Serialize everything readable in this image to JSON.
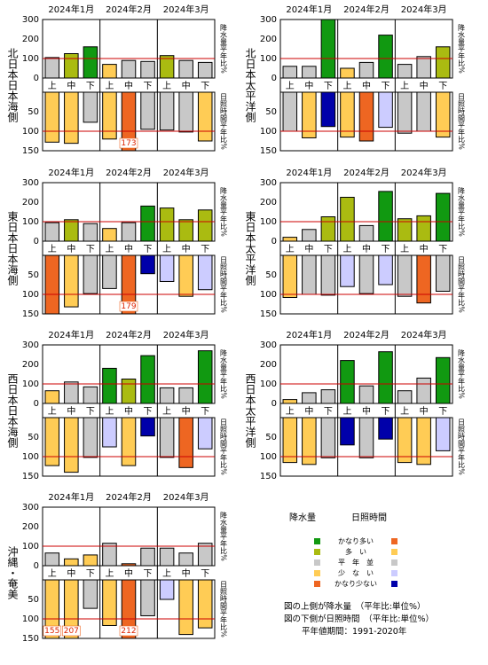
{
  "months": [
    "2024年1月",
    "2024年2月",
    "2024年3月"
  ],
  "periods": [
    "上",
    "中",
    "下",
    "上",
    "中",
    "下",
    "上",
    "中",
    "下"
  ],
  "top_axis": {
    "ticks": [
      0,
      100,
      200,
      300
    ]
  },
  "bottom_axis": {
    "ticks": [
      50,
      100,
      150
    ]
  },
  "right_label_top": "降水量平年比%",
  "right_label_bottom": "日照時間平年比%",
  "colors": {
    "precip": {
      "very_high": "#119911",
      "high": "#aabb11",
      "normal": "#c8c8c8",
      "low": "#ffcc55",
      "very_low": "#ee6622"
    },
    "sun": {
      "very_high": "#ee6622",
      "high": "#ffcc55",
      "normal": "#c8c8c8",
      "low": "#ccccff",
      "very_low": "#0000aa"
    },
    "reference_line": "#cc0000"
  },
  "legend": {
    "precip_header": "降水量",
    "sun_header": "日照時間",
    "categories": [
      "かなり多い",
      "多　い",
      "平　年　並",
      "少　な　い",
      "かなり少ない"
    ],
    "notes": [
      "図の上側が降水量　（平年比:単位%）",
      "図の下側が日照時間　（平年比:単位%）",
      "平年値期間：1991-2020年"
    ]
  },
  "chart_data": [
    {
      "type": "bar",
      "region": "北日本日本海側",
      "categories": [
        "上",
        "中",
        "下",
        "上",
        "中",
        "下",
        "上",
        "中",
        "下"
      ],
      "precip": {
        "values": [
          105,
          125,
          160,
          70,
          90,
          85,
          115,
          90,
          80
        ],
        "classes": [
          "normal",
          "high",
          "very_high",
          "low",
          "normal",
          "normal",
          "high",
          "normal",
          "normal"
        ]
      },
      "sun": {
        "values": [
          128,
          131,
          77,
          120,
          173,
          95,
          97,
          102,
          125
        ],
        "classes": [
          "high",
          "high",
          "normal",
          "high",
          "very_high",
          "normal",
          "normal",
          "normal",
          "high"
        ]
      },
      "sun_labels": [
        "",
        "",
        "",
        "",
        "173",
        "",
        "",
        "",
        ""
      ],
      "ylim_top": [
        0,
        300
      ],
      "ylim_bottom": [
        0,
        150
      ]
    },
    {
      "type": "bar",
      "region": "北日本太平洋側",
      "categories": [
        "上",
        "中",
        "下",
        "上",
        "中",
        "下",
        "上",
        "中",
        "下"
      ],
      "precip": {
        "values": [
          60,
          60,
          300,
          50,
          80,
          220,
          70,
          110,
          160
        ],
        "classes": [
          "normal",
          "normal",
          "very_high",
          "low",
          "normal",
          "very_high",
          "normal",
          "normal",
          "high"
        ]
      },
      "sun": {
        "values": [
          100,
          117,
          88,
          115,
          125,
          90,
          105,
          100,
          115
        ],
        "classes": [
          "normal",
          "high",
          "very_low",
          "high",
          "very_high",
          "low",
          "normal",
          "normal",
          "high"
        ]
      },
      "sun_labels": [
        "",
        "",
        "",
        "",
        "",
        "",
        "",
        "",
        ""
      ],
      "ylim_top": [
        0,
        300
      ],
      "ylim_bottom": [
        0,
        150
      ]
    },
    {
      "type": "bar",
      "region": "東日本日本海側",
      "categories": [
        "上",
        "中",
        "下",
        "上",
        "中",
        "下",
        "上",
        "中",
        "下"
      ],
      "precip": {
        "values": [
          95,
          110,
          90,
          65,
          95,
          180,
          170,
          110,
          160
        ],
        "classes": [
          "normal",
          "high",
          "normal",
          "low",
          "normal",
          "very_high",
          "high",
          "high",
          "high"
        ]
      },
      "sun": {
        "values": [
          150,
          132,
          98,
          85,
          179,
          47,
          67,
          105,
          88
        ],
        "classes": [
          "very_high",
          "high",
          "normal",
          "normal",
          "very_high",
          "very_low",
          "low",
          "high",
          "low"
        ]
      },
      "sun_labels": [
        "",
        "",
        "",
        "",
        "179",
        "",
        "",
        "",
        ""
      ],
      "ylim_top": [
        0,
        300
      ],
      "ylim_bottom": [
        0,
        150
      ]
    },
    {
      "type": "bar",
      "region": "東日本太平洋側",
      "categories": [
        "上",
        "中",
        "下",
        "上",
        "中",
        "下",
        "上",
        "中",
        "下"
      ],
      "precip": {
        "values": [
          20,
          60,
          125,
          225,
          80,
          255,
          115,
          130,
          245
        ],
        "classes": [
          "low",
          "normal",
          "high",
          "high",
          "normal",
          "very_high",
          "high",
          "high",
          "very_high"
        ]
      },
      "sun": {
        "values": [
          108,
          100,
          102,
          80,
          98,
          75,
          105,
          122,
          92
        ],
        "classes": [
          "high",
          "normal",
          "normal",
          "low",
          "normal",
          "low",
          "normal",
          "very_high",
          "normal"
        ]
      },
      "sun_labels": [
        "",
        "",
        "",
        "",
        "",
        "",
        "",
        "",
        ""
      ],
      "ylim_top": [
        0,
        300
      ],
      "ylim_bottom": [
        0,
        150
      ]
    },
    {
      "type": "bar",
      "region": "西日本日本海側",
      "categories": [
        "上",
        "中",
        "下",
        "上",
        "中",
        "下",
        "上",
        "中",
        "下"
      ],
      "precip": {
        "values": [
          65,
          110,
          85,
          180,
          125,
          245,
          80,
          80,
          270
        ],
        "classes": [
          "low",
          "normal",
          "normal",
          "very_high",
          "high",
          "very_high",
          "normal",
          "normal",
          "very_high"
        ]
      },
      "sun": {
        "values": [
          123,
          140,
          102,
          75,
          123,
          47,
          102,
          128,
          80
        ],
        "classes": [
          "high",
          "high",
          "normal",
          "low",
          "high",
          "very_low",
          "normal",
          "very_high",
          "low"
        ]
      },
      "sun_labels": [
        "",
        "",
        "",
        "",
        "",
        "",
        "",
        "",
        ""
      ],
      "ylim_top": [
        0,
        300
      ],
      "ylim_bottom": [
        0,
        150
      ]
    },
    {
      "type": "bar",
      "region": "西日本太平洋側",
      "categories": [
        "上",
        "中",
        "下",
        "上",
        "中",
        "下",
        "上",
        "中",
        "下"
      ],
      "precip": {
        "values": [
          20,
          55,
          70,
          220,
          90,
          265,
          65,
          130,
          235
        ],
        "classes": [
          "low",
          "normal",
          "normal",
          "very_high",
          "normal",
          "very_high",
          "normal",
          "normal",
          "very_high"
        ]
      },
      "sun": {
        "values": [
          115,
          120,
          103,
          70,
          103,
          55,
          115,
          120,
          85
        ],
        "classes": [
          "high",
          "high",
          "normal",
          "very_low",
          "normal",
          "very_low",
          "high",
          "high",
          "low"
        ]
      },
      "sun_labels": [
        "",
        "",
        "",
        "",
        "",
        "",
        "",
        "",
        ""
      ],
      "ylim_top": [
        0,
        300
      ],
      "ylim_bottom": [
        0,
        150
      ]
    },
    {
      "type": "bar",
      "region": "沖縄・奄美",
      "categories": [
        "上",
        "中",
        "下",
        "上",
        "中",
        "下",
        "上",
        "中",
        "下"
      ],
      "precip": {
        "values": [
          65,
          35,
          55,
          115,
          10,
          90,
          90,
          65,
          115
        ],
        "classes": [
          "normal",
          "low",
          "low",
          "normal",
          "very_low",
          "normal",
          "normal",
          "normal",
          "normal"
        ]
      },
      "sun": {
        "values": [
          155,
          207,
          73,
          117,
          212,
          92,
          50,
          140,
          123
        ],
        "classes": [
          "high",
          "high",
          "normal",
          "high",
          "very_high",
          "normal",
          "low",
          "high",
          "high"
        ]
      },
      "sun_labels": [
        "155",
        "207",
        "",
        "",
        "212",
        "",
        "",
        "",
        ""
      ],
      "ylim_top": [
        0,
        300
      ],
      "ylim_bottom": [
        0,
        150
      ]
    }
  ]
}
